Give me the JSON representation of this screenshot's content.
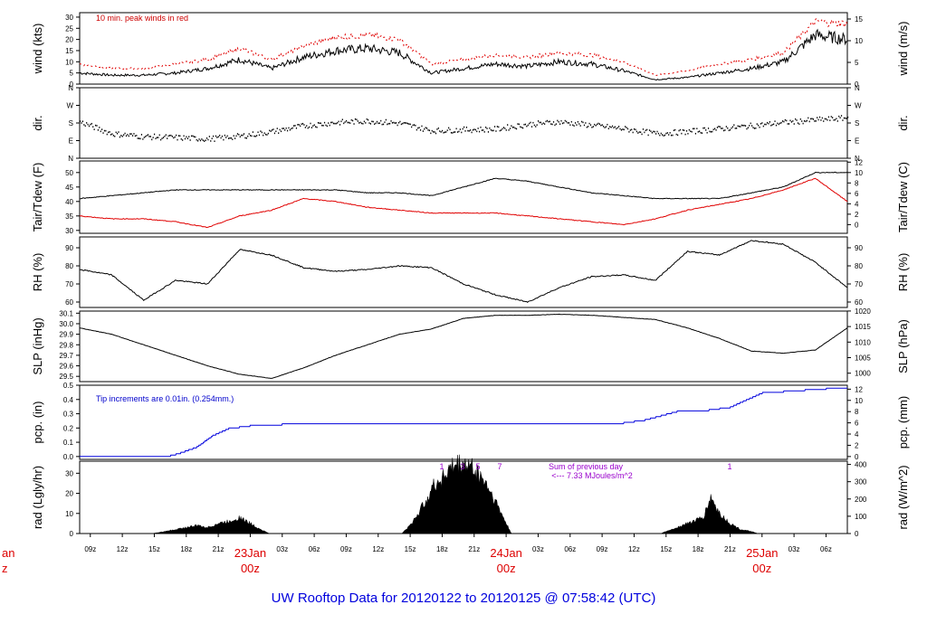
{
  "chart_data": [
    {
      "type": "line",
      "id": "wind",
      "ylabel_left": "wind (kts)",
      "ylabel_right": "wind (m/s)",
      "ylim": [
        0,
        32
      ],
      "ticks_left": [
        0,
        5,
        10,
        15,
        20,
        25,
        30
      ],
      "ticks_right": [
        0,
        5,
        10,
        15
      ],
      "right_factor": 0.5144,
      "annotation": "10 min. peak winds in red",
      "series": [
        {
          "name": "wind speed",
          "color": "#000000",
          "x": [
            0,
            3,
            6,
            9,
            12,
            15,
            18,
            21,
            24,
            27,
            30,
            33,
            36,
            39,
            42,
            45,
            48,
            51,
            54,
            57,
            60,
            63,
            66,
            69,
            72
          ],
          "values": [
            5,
            4,
            4,
            5,
            7,
            11,
            7,
            12,
            15,
            16,
            14,
            5,
            7,
            9,
            8,
            10,
            9,
            6,
            2,
            3,
            5,
            7,
            10,
            22,
            20
          ]
        },
        {
          "name": "10 min peak",
          "color": "#e00000",
          "x": [
            0,
            3,
            6,
            9,
            12,
            15,
            18,
            21,
            24,
            27,
            30,
            33,
            36,
            39,
            42,
            45,
            48,
            51,
            54,
            57,
            60,
            63,
            66,
            69,
            72
          ],
          "values": [
            9,
            7,
            7,
            9,
            11,
            16,
            11,
            17,
            21,
            22,
            20,
            9,
            11,
            13,
            12,
            14,
            13,
            10,
            4,
            6,
            9,
            11,
            14,
            28,
            27
          ]
        }
      ]
    },
    {
      "type": "scatter",
      "id": "dir",
      "ylabel_left": "dir.",
      "ylabel_right": "dir.",
      "ylim": [
        0,
        360
      ],
      "tick_values": [
        0,
        90,
        180,
        270,
        360
      ],
      "tick_labels": [
        "N",
        "E",
        "S",
        "W",
        "N"
      ],
      "series": [
        {
          "name": "wind direction",
          "color": "#000000",
          "x": [
            0,
            3,
            6,
            9,
            12,
            15,
            18,
            21,
            24,
            27,
            30,
            33,
            36,
            39,
            42,
            45,
            48,
            51,
            54,
            57,
            60,
            63,
            66,
            69,
            72
          ],
          "values": [
            185,
            125,
            110,
            105,
            98,
            112,
            135,
            165,
            182,
            190,
            178,
            140,
            145,
            148,
            172,
            185,
            168,
            150,
            125,
            135,
            150,
            165,
            182,
            195,
            205
          ]
        }
      ]
    },
    {
      "type": "line",
      "id": "temp",
      "ylabel_left": "Tair/Tdew (F)",
      "ylabel_right": "Tair/Tdew (C)",
      "ylim": [
        29,
        54
      ],
      "ticks_left": [
        30,
        35,
        40,
        45,
        50
      ],
      "ticks_right": [
        0,
        2,
        4,
        6,
        8,
        10,
        12
      ],
      "series": [
        {
          "name": "Tair",
          "color": "#000000",
          "x": [
            0,
            3,
            6,
            9,
            12,
            15,
            18,
            21,
            24,
            27,
            30,
            33,
            36,
            39,
            42,
            45,
            48,
            51,
            54,
            57,
            60,
            63,
            66,
            69,
            72
          ],
          "values": [
            41,
            42,
            43,
            44,
            44,
            44,
            44,
            44,
            44,
            43,
            43,
            42,
            45,
            48,
            47,
            45,
            43,
            42,
            41,
            41,
            41,
            43,
            45,
            50,
            50
          ]
        },
        {
          "name": "Tdew",
          "color": "#e00000",
          "x": [
            0,
            3,
            6,
            9,
            12,
            15,
            18,
            21,
            24,
            27,
            30,
            33,
            36,
            39,
            42,
            45,
            48,
            51,
            54,
            57,
            60,
            63,
            66,
            69,
            72
          ],
          "values": [
            35,
            34,
            34,
            33,
            31,
            35,
            37,
            41,
            40,
            38,
            37,
            36,
            36,
            36,
            35,
            34,
            33,
            32,
            34,
            37,
            39,
            41,
            44,
            48,
            40
          ]
        }
      ]
    },
    {
      "type": "line",
      "id": "rh",
      "ylabel_left": "RH (%)",
      "ylabel_right": "RH (%)",
      "ylim": [
        57,
        96
      ],
      "ticks_left": [
        60,
        70,
        80,
        90
      ],
      "ticks_right": [
        60,
        70,
        80,
        90
      ],
      "series": [
        {
          "name": "RH",
          "color": "#000000",
          "x": [
            0,
            3,
            6,
            9,
            12,
            15,
            18,
            21,
            24,
            27,
            30,
            33,
            36,
            39,
            42,
            45,
            48,
            51,
            54,
            57,
            60,
            63,
            66,
            69,
            72
          ],
          "values": [
            78,
            75,
            61,
            72,
            70,
            89,
            86,
            79,
            77,
            78,
            80,
            79,
            70,
            64,
            60,
            68,
            74,
            75,
            72,
            88,
            86,
            94,
            92,
            82,
            68
          ]
        }
      ]
    },
    {
      "type": "line",
      "id": "slp",
      "ylabel_left": "SLP (inHg)",
      "ylabel_right": "SLP (hPa)",
      "ylim": [
        29.45,
        30.12
      ],
      "ticks_left": [
        29.5,
        29.6,
        29.7,
        29.8,
        29.9,
        30.0,
        30.1
      ],
      "tick_labels_left": [
        "29.5",
        "29.6",
        "29.7",
        "29.8",
        "29.9",
        "30.0",
        "30.1"
      ],
      "ticks_right": [
        1000,
        1005,
        1010,
        1015,
        1020
      ],
      "series": [
        {
          "name": "SLP",
          "color": "#000000",
          "x": [
            0,
            3,
            6,
            9,
            12,
            15,
            18,
            21,
            24,
            27,
            30,
            33,
            36,
            39,
            42,
            45,
            48,
            51,
            54,
            57,
            60,
            63,
            66,
            69,
            72
          ],
          "values": [
            29.96,
            29.9,
            29.8,
            29.7,
            29.6,
            29.52,
            29.48,
            29.58,
            29.7,
            29.8,
            29.9,
            29.95,
            30.05,
            30.08,
            30.08,
            30.09,
            30.08,
            30.06,
            30.04,
            29.96,
            29.86,
            29.74,
            29.72,
            29.75,
            29.96
          ]
        }
      ]
    },
    {
      "type": "line",
      "id": "pcp",
      "ylabel_left": "pcp. (in)",
      "ylabel_right": "pcp. (mm)",
      "ylim": [
        -0.02,
        0.5
      ],
      "ticks_left": [
        0.0,
        0.1,
        0.2,
        0.3,
        0.4,
        0.5
      ],
      "tick_labels_left": [
        "0.0",
        "0.1",
        "0.2",
        "0.3",
        "0.4",
        "0.5"
      ],
      "ticks_right": [
        0,
        2,
        4,
        6,
        8,
        10,
        12
      ],
      "annotation": "Tip increments are 0.01in. (0.254mm.)",
      "series": [
        {
          "name": "cumulative precipitation",
          "color": "#0000dd",
          "x": [
            0,
            8,
            9.5,
            11,
            12.5,
            14,
            16,
            19,
            50,
            53,
            56,
            59,
            61,
            64,
            72
          ],
          "values": [
            0,
            0,
            0.03,
            0.07,
            0.15,
            0.2,
            0.22,
            0.23,
            0.23,
            0.26,
            0.32,
            0.33,
            0.35,
            0.45,
            0.49
          ]
        }
      ]
    },
    {
      "type": "area",
      "id": "rad",
      "ylabel_left": "rad (Lgly/hr)",
      "ylabel_right": "rad (W/m^2)",
      "ylim": [
        0,
        36
      ],
      "ticks_left": [
        0,
        10,
        20,
        30
      ],
      "ticks_right": [
        0,
        100,
        200,
        300,
        400
      ],
      "annotation_title": "Sum of previous day",
      "annotation_value": "<--- 7.33 MJoules/m^2",
      "hour_marks": [
        "1",
        "3",
        "5",
        "7",
        "1"
      ],
      "series": [
        {
          "name": "solar radiation",
          "color": "#000000",
          "x": [
            6.8,
            8,
            10,
            11,
            12,
            13,
            14,
            15,
            16,
            17,
            17.8,
            30.2,
            31,
            32,
            33,
            34,
            35,
            36,
            37,
            38,
            39,
            40,
            40.5,
            54.5,
            55.5,
            56.5,
            57.5,
            58.5,
            59.2,
            60,
            61,
            62,
            63,
            63.6
          ],
          "values": [
            0,
            1,
            3,
            4,
            3,
            5,
            6,
            8,
            5,
            2,
            0,
            0,
            4,
            12,
            22,
            28,
            33,
            35,
            32,
            26,
            16,
            5,
            0,
            0,
            2,
            4,
            6,
            8,
            18,
            10,
            5,
            2,
            1,
            0
          ]
        }
      ]
    }
  ],
  "time_axis": {
    "start_hour_utc": 8,
    "hours_total": 72,
    "tick_labels": [
      "09z",
      "12z",
      "15z",
      "18z",
      "21z",
      "03z",
      "06z",
      "09z",
      "12z",
      "15z",
      "18z",
      "21z",
      "03z",
      "06z",
      "09z",
      "12z",
      "15z",
      "18z",
      "21z",
      "03z",
      "06z"
    ],
    "day_labels": [
      {
        "date": "23Jan",
        "time": "00z"
      },
      {
        "date": "24Jan",
        "time": "00z"
      },
      {
        "date": "25Jan",
        "time": "00z"
      }
    ],
    "partial_left": {
      "date": "an",
      "time": "z"
    }
  },
  "footer": {
    "title": "UW Rooftop Data for 20120122  to  20120125 @ 07:58:42  (UTC)"
  }
}
